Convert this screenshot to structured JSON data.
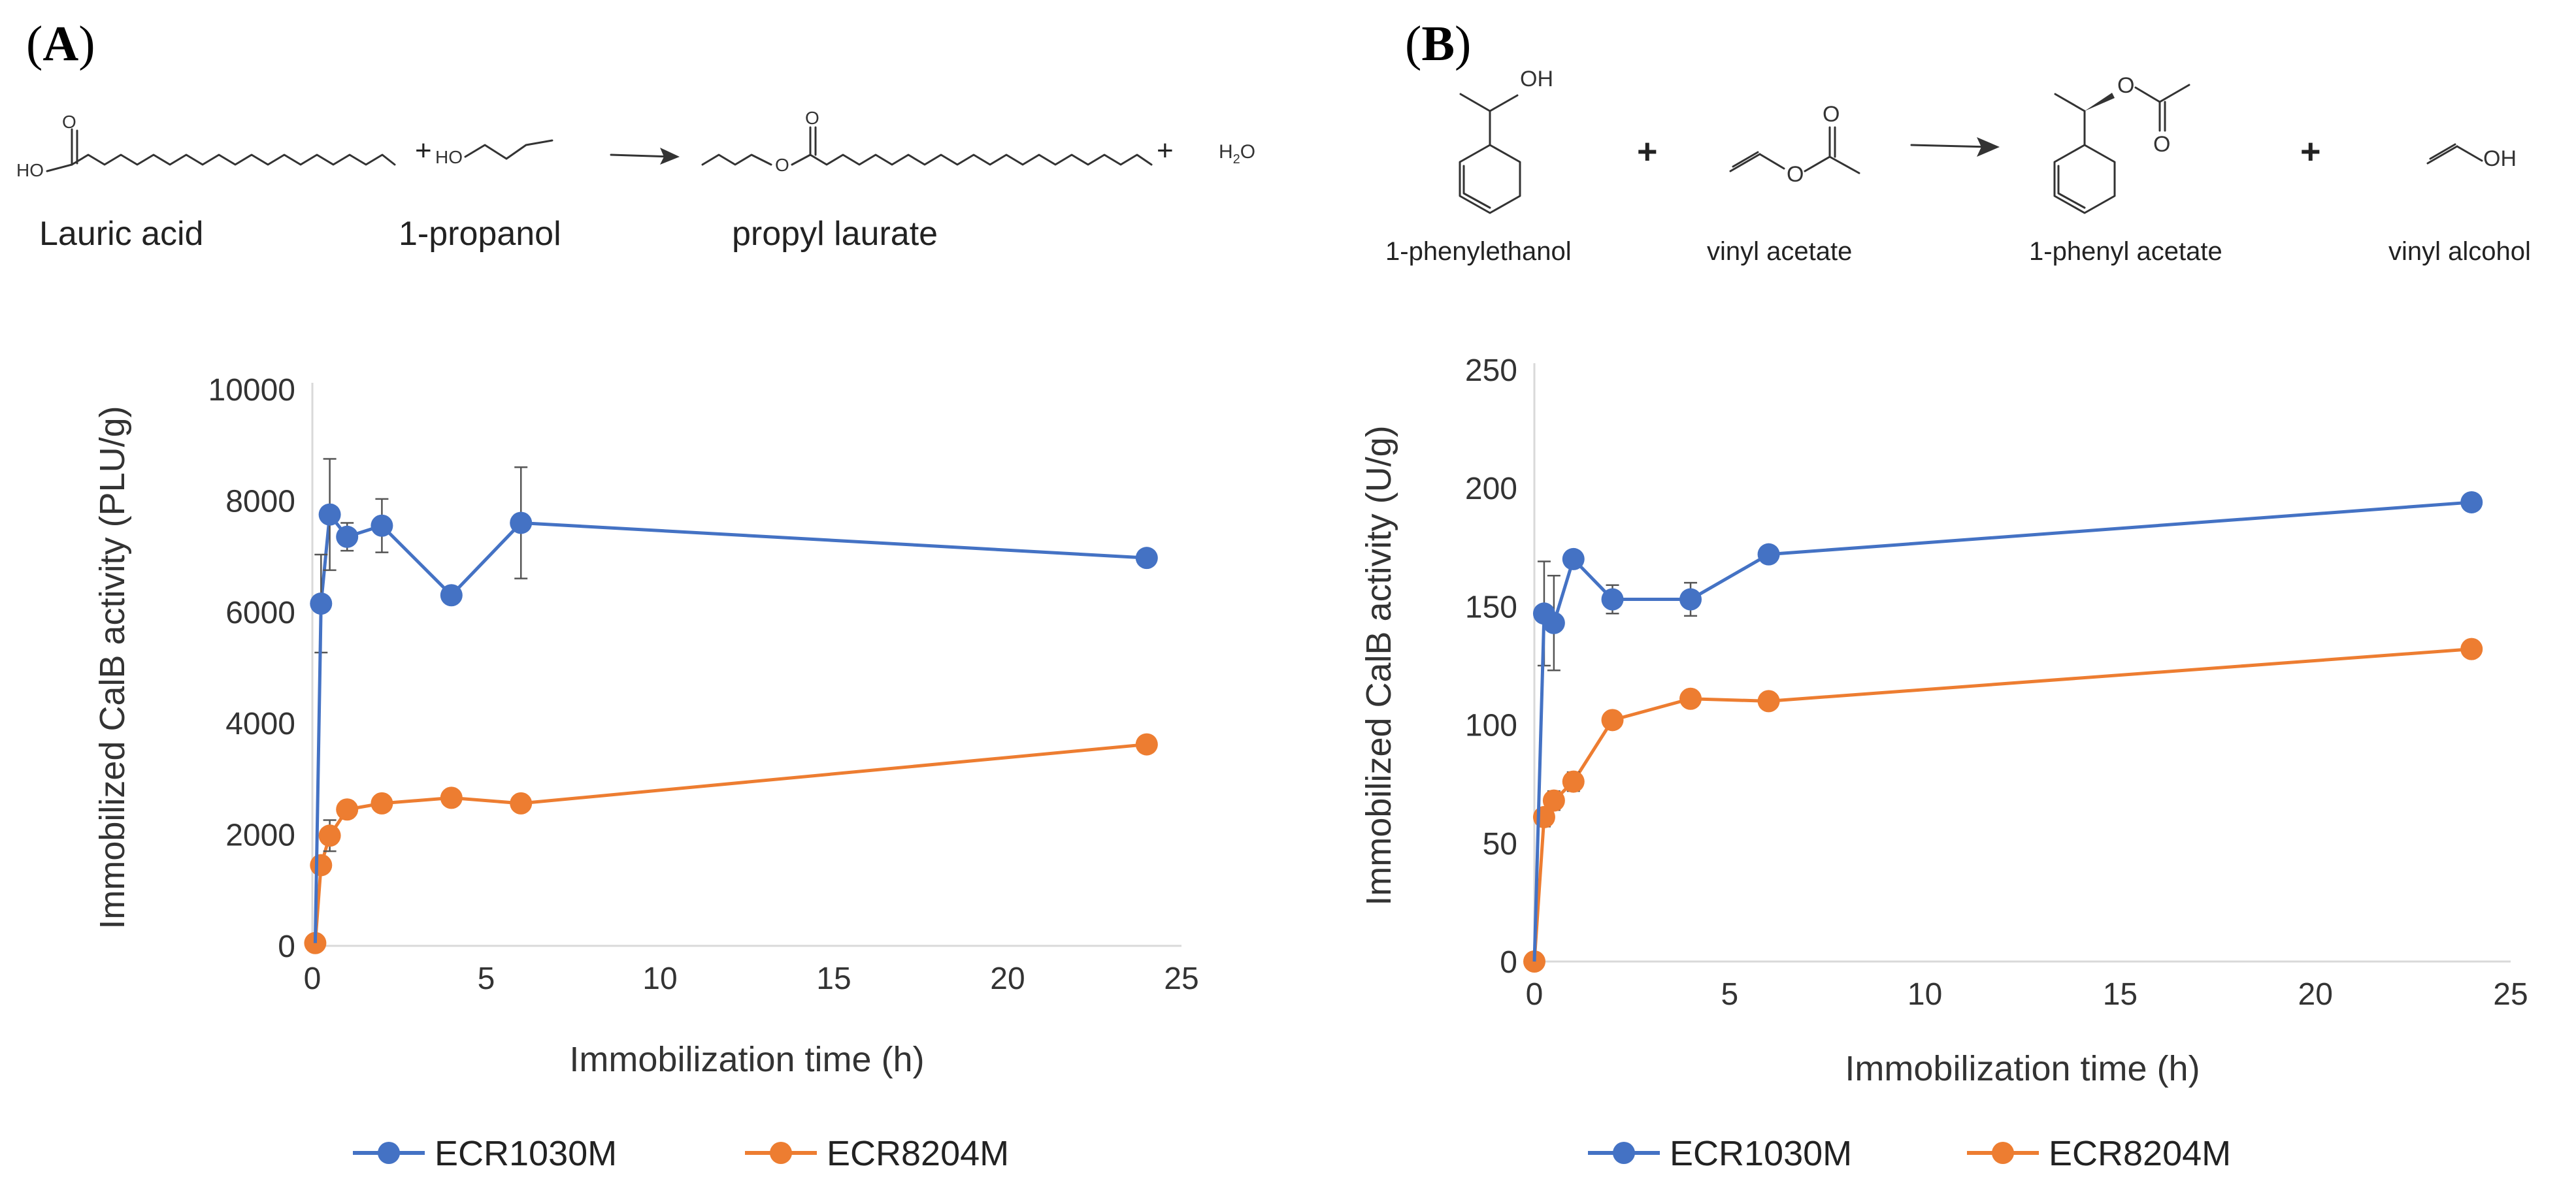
{
  "panels": [
    {
      "label_open": "(",
      "label_letter": "A",
      "label_close": ")",
      "reaction": {
        "plus1": "+",
        "plus2": "+",
        "names": [
          "Lauric acid",
          "1-propanol",
          "propyl laurate"
        ],
        "atoms": {
          "ho_acid": "HO",
          "o_acid": "O",
          "ho_alcohol": "HO",
          "o_ester_carbonyl": "O",
          "o_ester": "O",
          "water": "H",
          "water_sub": "2",
          "water_o": "O"
        }
      }
    },
    {
      "label_open": "(",
      "label_letter": "B",
      "label_close": ")",
      "reaction": {
        "plus1": "+",
        "plus2": "+",
        "names": [
          "1-phenylethanol",
          "vinyl acetate",
          "1-phenyl acetate",
          "vinyl alcohol"
        ],
        "atoms": {
          "oh_pe": "OH",
          "o_va_carbonyl": "O",
          "o_va": "O",
          "o_pa": "O",
          "o_pa_carbonyl": "O",
          "oh_vinyl": "OH"
        }
      }
    }
  ],
  "colors": {
    "series1": "#4472C4",
    "series2": "#ED7D31",
    "axis": "#D9D9D9",
    "text": "#333333",
    "errorbar": "#555555"
  },
  "chart_data": [
    {
      "type": "line",
      "title": "",
      "xlabel": "Immobilization time (h)",
      "ylabel": "Immobilized CalB activity (PLU/g)",
      "xlim": [
        0,
        25
      ],
      "ylim": [
        0,
        10000
      ],
      "xticks": [
        0,
        5,
        10,
        15,
        20,
        25
      ],
      "yticks": [
        0,
        2000,
        4000,
        6000,
        8000,
        10000
      ],
      "x": [
        0.083,
        0.25,
        0.5,
        1,
        2,
        4,
        6,
        24
      ],
      "series": [
        {
          "name": "ECR1030M",
          "values": [
            null,
            6150,
            7750,
            7350,
            7550,
            6300,
            7600,
            6970
          ],
          "errors": [
            null,
            880,
            1000,
            250,
            480,
            0,
            1000,
            80
          ]
        },
        {
          "name": "ECR8204M",
          "values": [
            50,
            1450,
            1980,
            2450,
            2560,
            2660,
            2560,
            3620
          ],
          "errors": [
            0,
            80,
            280,
            150,
            60,
            60,
            40,
            0
          ]
        }
      ],
      "legend": "bottom"
    },
    {
      "type": "line",
      "title": "",
      "xlabel": "Immobilization time (h)",
      "ylabel": "Immobilized CalB activity (U/g)",
      "xlim": [
        0,
        25
      ],
      "ylim": [
        0,
        250
      ],
      "xticks": [
        0,
        5,
        10,
        15,
        20,
        25
      ],
      "yticks": [
        0,
        50,
        100,
        150,
        200,
        250
      ],
      "x": [
        0,
        0.25,
        0.5,
        1,
        2,
        4,
        6,
        24
      ],
      "series": [
        {
          "name": "ECR1030M",
          "values": [
            null,
            147,
            143,
            170,
            153,
            153,
            172,
            194
          ],
          "errors": [
            null,
            22,
            20,
            0,
            6,
            7,
            0,
            0
          ]
        },
        {
          "name": "ECR8204M",
          "values": [
            0,
            61,
            68,
            76,
            102,
            111,
            110,
            132
          ],
          "errors": [
            0,
            4,
            4,
            4,
            3,
            2,
            2,
            0
          ]
        }
      ],
      "legend": "bottom"
    }
  ]
}
